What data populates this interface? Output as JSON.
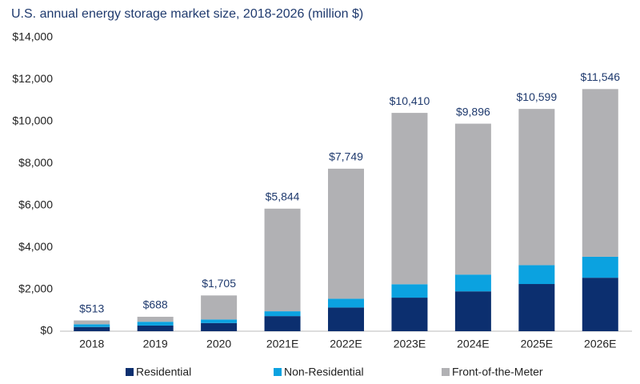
{
  "chart_data": {
    "type": "stacked-bar",
    "title": "U.S. annual energy storage market size, 2018-2026 (million $)",
    "categories": [
      "2018",
      "2019",
      "2020",
      "2021E",
      "2022E",
      "2023E",
      "2024E",
      "2025E",
      "2026E"
    ],
    "series": [
      {
        "name": "Residential",
        "color": "#0c2f6f",
        "values": [
          200,
          270,
          390,
          720,
          1130,
          1600,
          1900,
          2250,
          2550
        ]
      },
      {
        "name": "Non-Residential",
        "color": "#0ba2e0",
        "values": [
          130,
          180,
          170,
          230,
          420,
          640,
          800,
          900,
          1000
        ]
      },
      {
        "name": "Front-of-the-Meter",
        "color": "#b1b1b4",
        "values": [
          183,
          238,
          1145,
          4894,
          6199,
          8170,
          7196,
          7449,
          7996
        ]
      }
    ],
    "totals": [
      513,
      688,
      1705,
      5844,
      7749,
      10410,
      9896,
      10599,
      11546
    ],
    "total_labels": [
      "$513",
      "$688",
      "$1,705",
      "$5,844",
      "$7,749",
      "$10,410",
      "$9,896",
      "$10,599",
      "$11,546"
    ],
    "ylim": [
      0,
      14000
    ],
    "yticks": [
      {
        "value": 0,
        "label": "$0"
      },
      {
        "value": 2000,
        "label": "$2,000"
      },
      {
        "value": 4000,
        "label": "$4,000"
      },
      {
        "value": 6000,
        "label": "$6,000"
      },
      {
        "value": 8000,
        "label": "$8,000"
      },
      {
        "value": 10000,
        "label": "$10,000"
      },
      {
        "value": 12000,
        "label": "$12,000"
      },
      {
        "value": 14000,
        "label": "$14,000"
      }
    ],
    "grid": false,
    "legend": "bottom"
  }
}
